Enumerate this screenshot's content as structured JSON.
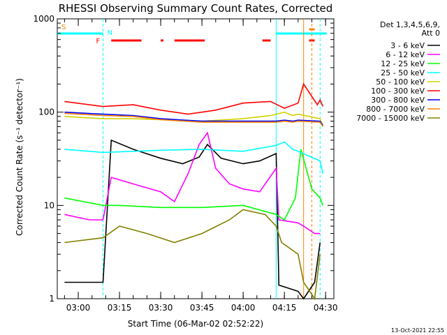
{
  "chart_data": {
    "type": "line",
    "title": "RHESSI Observing Summary Count Rates, Corrected",
    "xlabel": "Start Time (06-Mar-02 02:52:22)",
    "ylabel": "Corrected Count Rate (s⁻¹ detector⁻¹)",
    "y_scale": "log",
    "ylim": [
      1,
      1000
    ],
    "xlim": [
      "02:52:22",
      "04:33:00"
    ],
    "y_ticks": [
      {
        "value": 1,
        "label": "1"
      },
      {
        "value": 10,
        "label": "10"
      },
      {
        "value": 100,
        "label": "100"
      },
      {
        "value": 1000,
        "label": "1000"
      }
    ],
    "x_ticks": [
      {
        "value": "03:00",
        "label": "03:00"
      },
      {
        "value": "03:15",
        "label": "03:15"
      },
      {
        "value": "03:30",
        "label": "03:30"
      },
      {
        "value": "03:45",
        "label": "03:45"
      },
      {
        "value": "04:00",
        "label": "04:00"
      },
      {
        "value": "04:15",
        "label": "04:15"
      },
      {
        "value": "04:30",
        "label": "04:30"
      }
    ],
    "legend_title": [
      "Det 1,3,4,5,6,9,",
      "Att 0"
    ],
    "legend_position": "right",
    "footer_date": "13-Oct-2021 22:55",
    "series": [
      {
        "name": "3 - 6 keV",
        "color": "#000000",
        "x": [
          "02:55",
          "03:09",
          "03:12",
          "03:20",
          "03:30",
          "03:38",
          "03:44",
          "03:47",
          "03:52",
          "04:00",
          "04:06",
          "04:12",
          "04:13",
          "04:20",
          "04:22",
          "04:26",
          "04:28"
        ],
        "y": [
          1.5,
          1.5,
          50,
          40,
          32,
          28,
          33,
          45,
          32,
          28,
          30,
          36,
          1.4,
          1.2,
          1.0,
          1.5,
          4
        ]
      },
      {
        "name": "6 - 12 keV",
        "color": "#ff00ff",
        "x": [
          "02:55",
          "03:04",
          "03:09",
          "03:12",
          "03:20",
          "03:30",
          "03:35",
          "03:40",
          "03:44",
          "03:47",
          "03:50",
          "03:55",
          "04:00",
          "04:06",
          "04:12",
          "04:13",
          "04:20",
          "04:22",
          "04:26",
          "04:28"
        ],
        "y": [
          8,
          7,
          7,
          20,
          17,
          14,
          11,
          22,
          45,
          60,
          25,
          17,
          15,
          14,
          25,
          7,
          6.5,
          6,
          5,
          5
        ]
      },
      {
        "name": "12 - 25 keV",
        "color": "#00ff00",
        "x": [
          "02:55",
          "03:09",
          "03:15",
          "03:30",
          "03:45",
          "04:00",
          "04:12",
          "04:15",
          "04:19",
          "04:21",
          "04:25",
          "04:28",
          "04:29"
        ],
        "y": [
          12,
          10,
          10,
          9.5,
          9.5,
          10,
          8,
          7,
          12,
          40,
          15,
          12,
          10
        ]
      },
      {
        "name": "25 - 50 keV",
        "color": "#00ffff",
        "x": [
          "02:55",
          "03:09",
          "03:20",
          "03:30",
          "03:45",
          "04:00",
          "04:12",
          "04:15",
          "04:18",
          "04:20",
          "04:28",
          "04:29"
        ],
        "y": [
          40,
          37,
          38,
          39,
          40,
          38,
          44,
          48,
          40,
          38,
          30,
          22
        ]
      },
      {
        "name": "50 - 100 keV",
        "color": "#d0d000",
        "x": [
          "02:55",
          "03:09",
          "03:20",
          "03:30",
          "03:45",
          "04:00",
          "04:10",
          "04:15",
          "04:18",
          "04:20",
          "04:28",
          "04:29"
        ],
        "y": [
          90,
          85,
          85,
          83,
          80,
          85,
          92,
          100,
          92,
          95,
          85,
          70
        ]
      },
      {
        "name": "100 - 300 keV",
        "color": "#ff0000",
        "x": [
          "02:55",
          "03:09",
          "03:20",
          "03:30",
          "03:40",
          "03:50",
          "04:00",
          "04:10",
          "04:15",
          "04:20",
          "04:22",
          "04:27",
          "04:28",
          "04:29"
        ],
        "y": [
          130,
          115,
          120,
          105,
          95,
          105,
          125,
          130,
          110,
          125,
          200,
          120,
          135,
          115
        ]
      },
      {
        "name": "300 - 800 keV",
        "color": "#0000ff",
        "x": [
          "02:55",
          "03:09",
          "03:20",
          "03:30",
          "03:45",
          "04:00",
          "04:12",
          "04:15",
          "04:18",
          "04:20",
          "04:28",
          "04:29"
        ],
        "y": [
          100,
          95,
          92,
          85,
          80,
          80,
          80,
          82,
          80,
          82,
          80,
          72
        ]
      },
      {
        "name": "800 - 7000 keV",
        "color": "#ff8000",
        "x": [
          "02:55",
          "03:09",
          "03:20",
          "03:30",
          "03:45",
          "04:00",
          "04:12",
          "04:15",
          "04:18",
          "04:20",
          "04:28",
          "04:29"
        ],
        "y": [
          97,
          92,
          90,
          83,
          78,
          78,
          78,
          80,
          78,
          80,
          78,
          70
        ]
      },
      {
        "name": "7000 - 15000 keV",
        "color": "#808000",
        "x": [
          "02:55",
          "03:09",
          "03:15",
          "03:25",
          "03:35",
          "03:45",
          "03:55",
          "04:00",
          "04:08",
          "04:12",
          "04:14",
          "04:20",
          "04:22",
          "04:26",
          "04:28"
        ],
        "y": [
          4,
          4.5,
          6,
          5,
          4,
          5,
          7,
          9,
          8,
          6,
          4,
          3,
          1.5,
          1,
          3
        ]
      }
    ],
    "markers": {
      "saa_label": "S",
      "night_label": "N",
      "flare_label": "F"
    }
  }
}
